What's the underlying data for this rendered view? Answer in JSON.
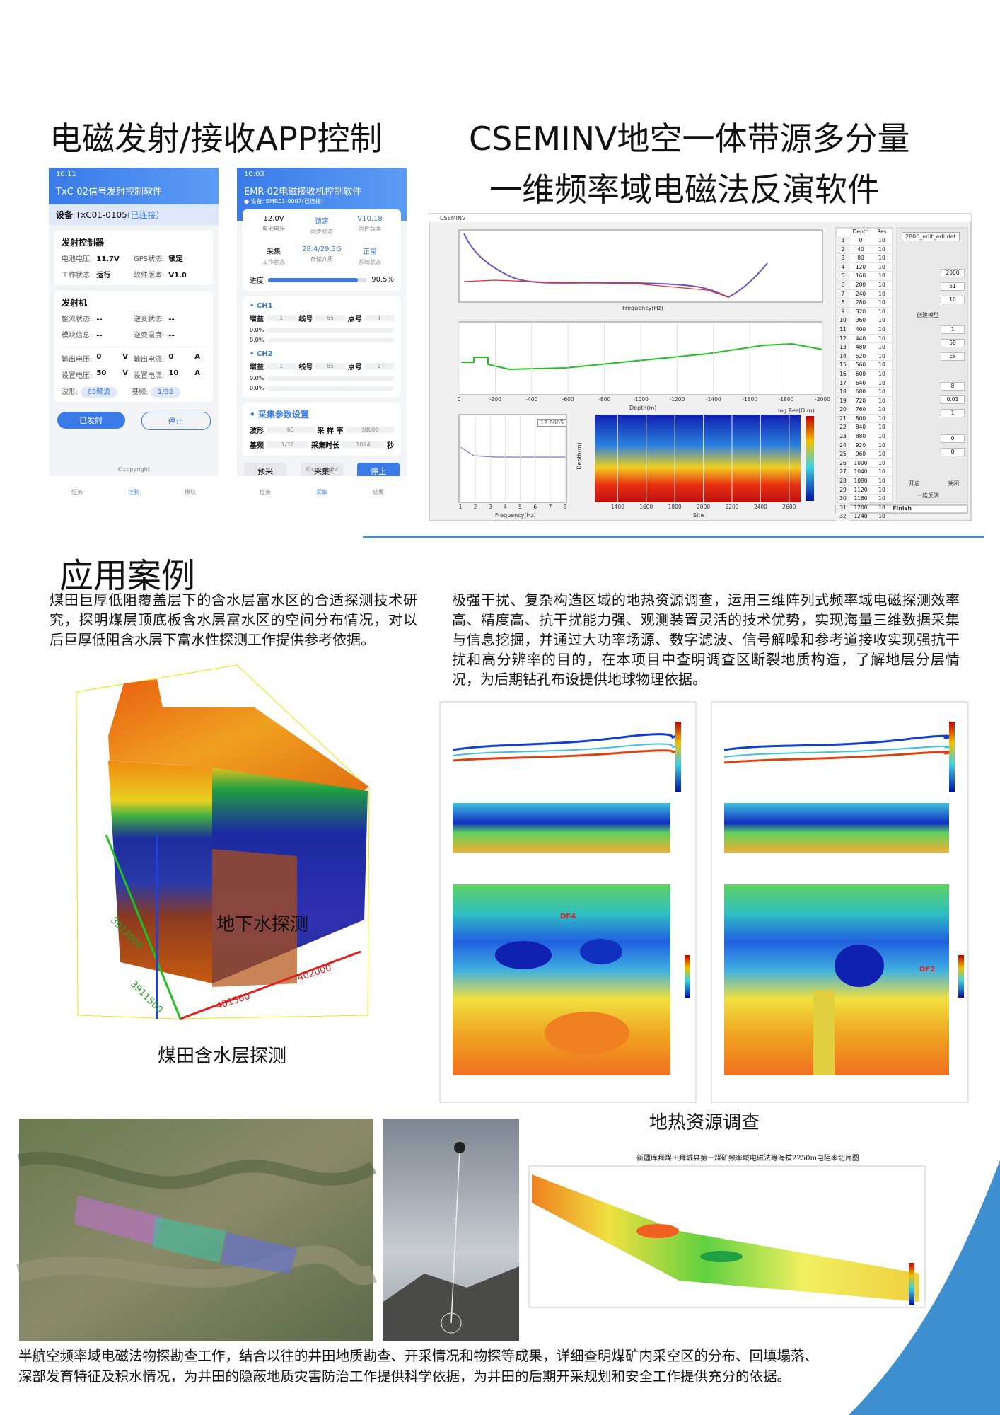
{
  "app": {
    "title": "电磁发射/接收APP控制",
    "phone1": {
      "time": "10:11",
      "header": "TxC-02信号发射控制软件",
      "device_label": "设备",
      "device_id": "TxC01-0105",
      "device_state": "(已连接)",
      "card1_title": "发射控制器",
      "card1": [
        [
          "电池电压:",
          "11.7V"
        ],
        [
          "GPS状态:",
          "锁定"
        ],
        [
          "工作状态:",
          "运行"
        ],
        [
          "软件版本:",
          "V1.0"
        ]
      ],
      "card2_title": "发射机",
      "card2": [
        [
          "整流状态:",
          "--"
        ],
        [
          "逆变状态:",
          "--"
        ],
        [
          "模块信息:",
          "--"
        ],
        [
          "逆变温度:",
          "--"
        ]
      ],
      "card2_units": [
        [
          "输出电压:",
          "0",
          "V"
        ],
        [
          "输出电流:",
          "0",
          "A"
        ],
        [
          "设置电压:",
          "50",
          "V"
        ],
        [
          "设置电流:",
          "10",
          "A"
        ]
      ],
      "wave": [
        "波形:",
        "65频波"
      ],
      "base": [
        "基频:",
        "1/32"
      ],
      "buttons": [
        "已发射",
        "停止"
      ],
      "copyright": "©copyright",
      "nav": [
        "任务",
        "控制",
        "模块"
      ]
    },
    "phone2": {
      "time": "10:03",
      "header": "EMR-02电磁接收机控制软件",
      "device": "● 设备: EMR01-0007(已连接)",
      "status": [
        [
          "12.0V",
          "电池电压"
        ],
        [
          "锁定",
          "同步状态"
        ],
        [
          "V10.18",
          "固件版本"
        ],
        [
          "采集",
          "工作状态"
        ],
        [
          "28.4/29.3G",
          "存储介质"
        ],
        [
          "正常",
          "系统状态"
        ]
      ],
      "progress_title": "进度",
      "progress": 90.5,
      "progress_label": "90.5%",
      "channels": [
        {
          "name": "CH1",
          "fields": [
            "增益",
            "1",
            "线号",
            "65",
            "点号",
            "1"
          ],
          "levels": [
            "0.0%",
            "0.0%"
          ]
        },
        {
          "name": "CH2",
          "fields": [
            "增益",
            "1",
            "线号",
            "65",
            "点号",
            "2"
          ],
          "levels": [
            "0.0%",
            "0.0%"
          ]
        }
      ],
      "params_title": "采集参数设置",
      "params": [
        [
          "波形",
          "65",
          "采 样 率",
          "30000",
          ""
        ],
        [
          "基频",
          "1/32",
          "采集时长",
          "1024",
          "秒"
        ]
      ],
      "buttons": [
        "预采",
        "采集",
        "停止"
      ],
      "copyright": "©copyright",
      "nav": [
        "任务",
        "采集",
        "结果"
      ]
    }
  },
  "software": {
    "title_lines": [
      "CSEMINV地空一体带源多分量",
      "一维频率域电磁法反演软件"
    ],
    "window_title": "CSEMINV",
    "plot1_xlabel": "Frequency(Hz)",
    "plot2_xlabel": "Depth(m)",
    "plot2_xlim": [
      0,
      -2000
    ],
    "plot2_xticks": [
      0,
      -200,
      -400,
      -600,
      -800,
      -1000,
      -1200,
      -1400,
      -1600,
      -1800,
      -2000
    ],
    "plot3_xlabel": "Frequency(Hz)",
    "plot3_xlim": [
      1,
      8
    ],
    "plot3_xticks": [
      1,
      2,
      3,
      4,
      5,
      6,
      7,
      8
    ],
    "plot3_legend": "12.8005",
    "plot4_xlabel": "Site",
    "plot4_ylabel": "Depth(m)",
    "plot4_xlim": [
      1240,
      2680
    ],
    "plot4_xticks": [
      1400,
      1600,
      1800,
      2000,
      2200,
      2400,
      2600
    ],
    "colorbar_label": "log Res(Ω.m)",
    "table": {
      "header": [
        "Depth",
        "Res"
      ],
      "rows": [
        [
          1,
          0,
          10
        ],
        [
          2,
          40,
          10
        ],
        [
          3,
          80,
          10
        ],
        [
          4,
          120,
          10
        ],
        [
          5,
          160,
          10
        ],
        [
          6,
          200,
          10
        ],
        [
          7,
          240,
          10
        ],
        [
          8,
          280,
          10
        ],
        [
          9,
          320,
          10
        ],
        [
          10,
          360,
          10
        ],
        [
          11,
          400,
          10
        ],
        [
          12,
          440,
          10
        ],
        [
          13,
          480,
          10
        ],
        [
          14,
          520,
          10
        ],
        [
          15,
          560,
          10
        ],
        [
          16,
          600,
          10
        ],
        [
          17,
          640,
          10
        ],
        [
          18,
          680,
          10
        ],
        [
          19,
          720,
          10
        ],
        [
          20,
          760,
          10
        ],
        [
          21,
          800,
          10
        ],
        [
          22,
          840,
          10
        ],
        [
          23,
          880,
          10
        ],
        [
          24,
          920,
          10
        ],
        [
          25,
          960,
          10
        ],
        [
          26,
          1000,
          10
        ],
        [
          27,
          1040,
          10
        ],
        [
          28,
          1080,
          10
        ],
        [
          29,
          1120,
          10
        ],
        [
          30,
          1160,
          10
        ],
        [
          31,
          1200,
          10
        ],
        [
          32,
          1240,
          10
        ]
      ]
    },
    "file": "2800_edit_edi.dat",
    "panel_fields": [
      "2000",
      "51",
      "10",
      "1",
      "58",
      "Ex",
      "8",
      "0.01",
      "1",
      "0",
      "0"
    ],
    "buttons": [
      "创建模型",
      "一维反演",
      "Finish"
    ],
    "switches": [
      "开启",
      "关闭"
    ]
  },
  "cases": {
    "title": "应用案例",
    "groundwater": {
      "text_lines": [
        "煤田巨厚低阻覆盖层下的含水层富水区的合适探测技术研",
        "究，探明煤层顶底板含水层富水区的空间分布情况，对以",
        "后巨厚低阻含水层下富水性探测工作提供参考依据。"
      ],
      "label": "地下水探测",
      "caption": "煤田含水层探测",
      "axis_labels": [
        "401500",
        "402000",
        "3912000",
        "3911500"
      ]
    },
    "geothermal": {
      "text_lines": [
        "极强干扰、复杂构造区域的地热资源调查，运用三维阵列式频率域电磁探测效率",
        "高、精度高、抗干扰能力强、观测装置灵活的技术优势，实现海量三维数据采集",
        "与信息挖掘，并通过大功率场源、数字滤波、信号解噪和参考道接收实现强抗干",
        "扰和高分辨率的目的，在本项目中查明调查区断裂地质构造，了解地层分层情",
        "况，为后期钻孔布设提供地球物理依据。"
      ],
      "caption": "地热资源调查",
      "fault_labels": [
        "DF4",
        "DF2"
      ]
    },
    "coal": {
      "map_title": "新疆库拜煤田拜城县第一煤矿频率域电磁法等海拔2250m电阻率切片图",
      "text_lines": [
        "半航空频率域电磁法物探勘查工作，结合以往的井田地质勘查、开采情况和物探等成果，详细查明煤矿内采空区的分布、回填塌落、",
        "深部发育特征及积水情况，为井田的隐蔽地质灾害防治工作提供科学依据，为井田的后期开采规划和安全工作提供充分的依据。"
      ]
    }
  }
}
